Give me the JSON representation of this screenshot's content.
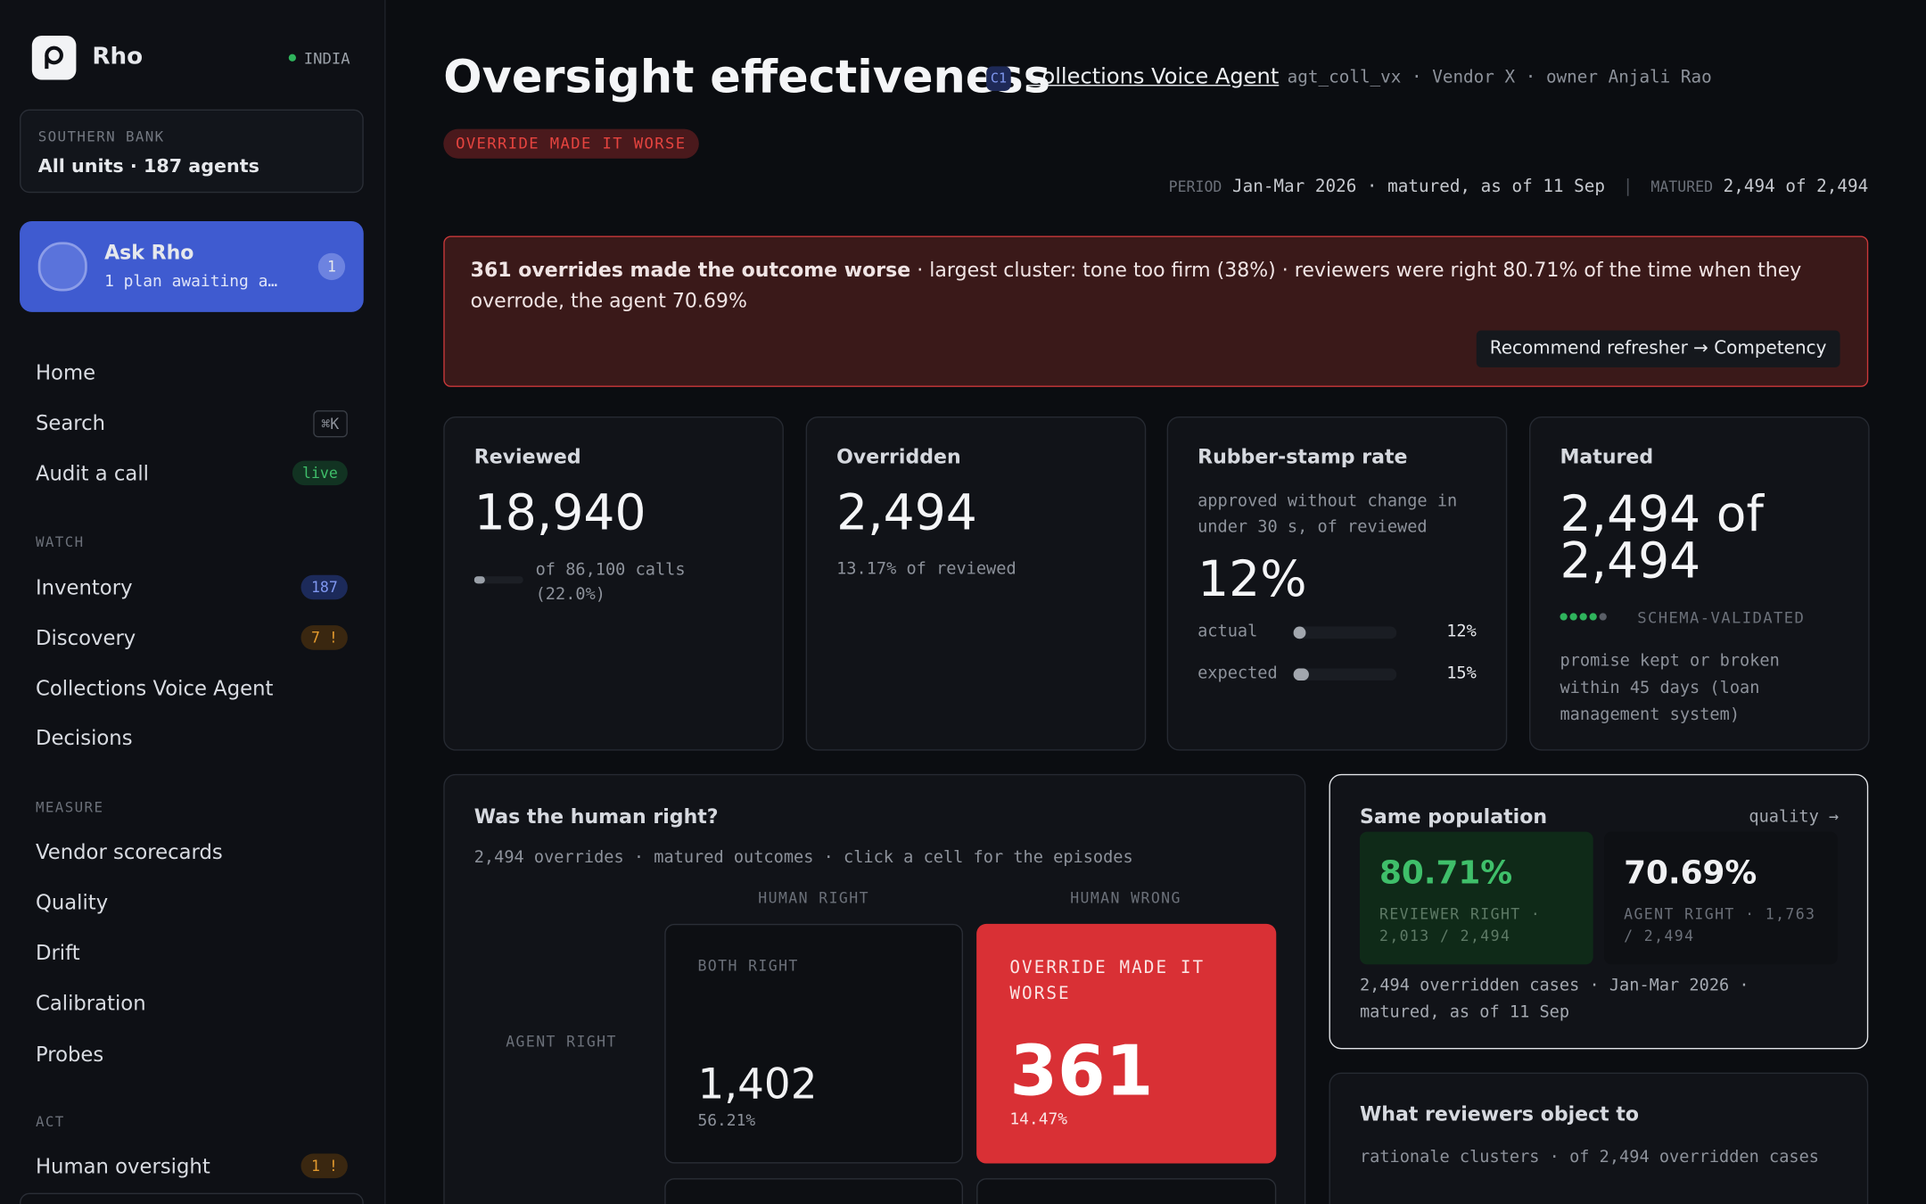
{
  "sidebar": {
    "brand": "Rho",
    "region": "INDIA",
    "org": {
      "label": "SOUTHERN BANK",
      "value": "All units · 187 agents"
    },
    "ask": {
      "title": "Ask Rho",
      "subtitle": "1 plan awaiting a…",
      "badge": "1"
    },
    "nav": [
      {
        "label": "Home"
      },
      {
        "label": "Search",
        "kbd": "⌘K"
      },
      {
        "label": "Audit a call",
        "badge": "live"
      }
    ],
    "sections": [
      {
        "heading": "WATCH",
        "items": [
          {
            "label": "Inventory",
            "badge": "187"
          },
          {
            "label": "Discovery",
            "badge": "7 !"
          },
          {
            "label": "Collections Voice Agent"
          },
          {
            "label": "Decisions"
          }
        ]
      },
      {
        "heading": "MEASURE",
        "items": [
          {
            "label": "Vendor scorecards"
          },
          {
            "label": "Quality"
          },
          {
            "label": "Drift"
          },
          {
            "label": "Calibration"
          },
          {
            "label": "Probes"
          }
        ]
      },
      {
        "heading": "ACT",
        "items": [
          {
            "label": "Human oversight",
            "badge": "1 !"
          }
        ]
      }
    ]
  },
  "header": {
    "title": "Oversight effectiveness",
    "chip": "C1",
    "agent": "Collections Voice Agent",
    "meta": "agt_coll_vx · Vendor X · owner Anjali Rao",
    "status": "OVERRIDE MADE IT WORSE",
    "period_label": "PERIOD",
    "period_value": "Jan-Mar 2026 · matured, as of 11 Sep",
    "separator": "|",
    "matured_label": "MATURED",
    "matured_value": "2,494 of 2,494"
  },
  "alert": {
    "headline": "361 overrides made the outcome worse",
    "text": "· largest cluster: tone too firm (38%) · reviewers were right 80.71% of the time when they overrode, the agent 70.69%",
    "button": "Recommend refresher → Competency"
  },
  "cards": [
    {
      "title": "Reviewed",
      "value": "18,940",
      "note": "of 86,100 calls (22.0%)",
      "progress": 22.0
    },
    {
      "title": "Overridden",
      "value": "2,494",
      "note": "13.17% of reviewed"
    },
    {
      "title": "Rubber-stamp rate",
      "description": "approved without change in under 30 s, of reviewed",
      "value": "12%",
      "rows": [
        {
          "label": "actual",
          "value": 12,
          "value_label": "12%"
        },
        {
          "label": "expected",
          "value": 15,
          "value_label": "15%"
        }
      ]
    },
    {
      "title": "Matured",
      "value": "2,494 of 2,494",
      "tag": "SCHEMA-VALIDATED",
      "note": "promise kept or broken within 45 days (loan management system)"
    }
  ],
  "matrix": {
    "title": "Was the human right?",
    "subtitle": "2,494 overrides · matured outcomes · click a cell for the episodes",
    "columns": [
      "HUMAN RIGHT",
      "HUMAN WRONG"
    ],
    "rows": [
      "AGENT RIGHT"
    ],
    "cells": [
      {
        "label": "BOTH RIGHT",
        "value": "1,402",
        "share": "56.21%"
      },
      {
        "label": "OVERRIDE MADE IT WORSE",
        "value": "361",
        "share": "14.47%"
      }
    ]
  },
  "population": {
    "title": "Same population",
    "link": "quality →",
    "stats": [
      {
        "value": "80.71%",
        "label": "REVIEWER RIGHT · 2,013 / 2,494"
      },
      {
        "value": "70.69%",
        "label": "AGENT RIGHT · 1,763 / 2,494"
      }
    ],
    "note": "2,494 overridden cases · Jan-Mar 2026 · matured, as of 11 Sep"
  },
  "objections": {
    "title": "What reviewers object to",
    "subtitle": "rationale clusters · of 2,494 overridden cases"
  }
}
